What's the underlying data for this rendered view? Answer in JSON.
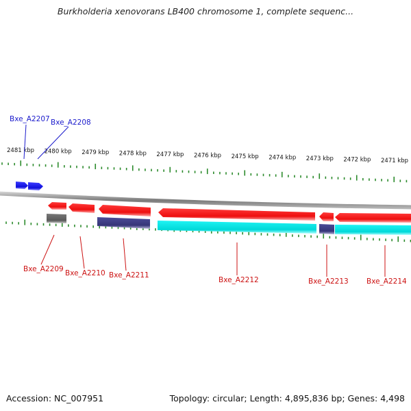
{
  "title": "Burkholderia xenovorans LB400 chromosome 1, complete sequenc...",
  "footer": {
    "accession": "Accession: NC_007951",
    "topology": "Topology: circular; Length: 4,895,836 bp; Genes: 4,498"
  },
  "scale_labels": [
    "2481 kbp",
    "2480 kbp",
    "2479 kbp",
    "2478 kbp",
    "2477 kbp",
    "2476 kbp",
    "2475 kbp",
    "2474 kbp",
    "2473 kbp",
    "2472 kbp",
    "2471 kbp"
  ],
  "colors": {
    "forward_gene": "#1010dd",
    "reverse_gene": "#ee1111",
    "cds_cyan": "#00e6e6",
    "cds_navy": "#3c3c86",
    "cds_gray": "#666666",
    "tick": "#2b8a2b",
    "forward_label": "#1a1acc",
    "reverse_label": "#cc1111"
  },
  "genes": [
    {
      "id": "Bxe_A2207",
      "strand": "forward"
    },
    {
      "id": "Bxe_A2208",
      "strand": "forward"
    },
    {
      "id": "Bxe_A2209",
      "strand": "reverse"
    },
    {
      "id": "Bxe_A2210",
      "strand": "reverse"
    },
    {
      "id": "Bxe_A2211",
      "strand": "reverse"
    },
    {
      "id": "Bxe_A2212",
      "strand": "reverse"
    },
    {
      "id": "Bxe_A2213",
      "strand": "reverse"
    },
    {
      "id": "Bxe_A2214",
      "strand": "reverse"
    }
  ]
}
